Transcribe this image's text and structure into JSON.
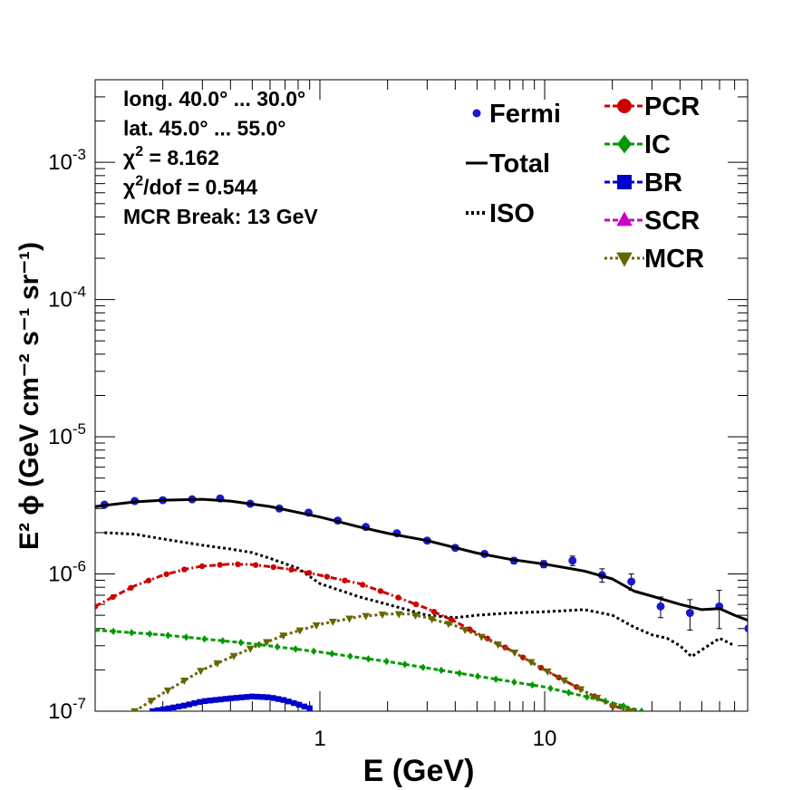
{
  "chart_data": {
    "type": "line",
    "xlabel": "E (GeV)",
    "ylabel": "E² ϕ (GeV cm⁻² s⁻¹ sr⁻¹)",
    "x_scale": "log",
    "y_scale": "log",
    "xlim": [
      0.1,
      80
    ],
    "ylim": [
      1e-07,
      0.004
    ],
    "x_tick_labels": [
      {
        "value": 1,
        "label": "1"
      },
      {
        "value": 10,
        "label": "10"
      }
    ],
    "y_tick_labels": [
      {
        "value": 1e-07,
        "base": "10",
        "exp": "-7"
      },
      {
        "value": 1e-06,
        "base": "10",
        "exp": "-6"
      },
      {
        "value": 1e-05,
        "base": "10",
        "exp": "-5"
      },
      {
        "value": 0.0001,
        "base": "10",
        "exp": "-4"
      },
      {
        "value": 0.001,
        "base": "10",
        "exp": "-3"
      }
    ],
    "annotations": [
      {
        "text": "long. 40.0° ... 30.0°"
      },
      {
        "text": "lat. 45.0° ... 55.0°"
      },
      {
        "symbol": "χ",
        "sup": "2",
        "rest": " = 8.162"
      },
      {
        "symbol": "χ",
        "sup": "2",
        "rest": "/dof = 0.544"
      },
      {
        "text": "MCR Break: 13 GeV"
      }
    ],
    "legend_left": [
      {
        "name": "Fermi",
        "marker": "dot",
        "color": "#1a1acc"
      },
      {
        "name": "Total",
        "marker": "solid-line",
        "color": "#000000"
      },
      {
        "name": "ISO",
        "marker": "dotted-line",
        "color": "#000000"
      }
    ],
    "legend_right": [
      {
        "name": "PCR",
        "marker": "circle",
        "color": "#cc0000"
      },
      {
        "name": "IC",
        "marker": "diamond",
        "color": "#009900"
      },
      {
        "name": "BR",
        "marker": "square",
        "color": "#0000cc"
      },
      {
        "name": "SCR",
        "marker": "triangle-up",
        "color": "#cc00cc"
      },
      {
        "name": "MCR",
        "marker": "triangle-down",
        "color": "#666600"
      }
    ],
    "series": [
      {
        "name": "Fermi",
        "style": "points-errorbars",
        "color": "#1a1acc",
        "x": [
          0.11,
          0.15,
          0.2,
          0.27,
          0.36,
          0.49,
          0.66,
          0.89,
          1.2,
          1.6,
          2.2,
          3.0,
          4.0,
          5.4,
          7.3,
          9.9,
          13.3,
          18.0,
          24.3,
          32.8,
          44.3,
          59.8,
          80.7
        ],
        "y": [
          3.2e-06,
          3.4e-06,
          3.45e-06,
          3.5e-06,
          3.55e-06,
          3.25e-06,
          3e-06,
          2.8e-06,
          2.45e-06,
          2.2e-06,
          1.98e-06,
          1.75e-06,
          1.55e-06,
          1.4e-06,
          1.25e-06,
          1.18e-06,
          1.25e-06,
          9.8e-07,
          8.8e-07,
          5.8e-07,
          5.2e-07,
          5.8e-07,
          4e-07
        ],
        "yerr": [
          1e-07,
          1e-07,
          1e-07,
          1e-07,
          1e-07,
          1e-07,
          1e-07,
          1e-07,
          8e-08,
          8e-08,
          7e-08,
          6e-08,
          6e-08,
          6e-08,
          6e-08,
          7e-08,
          1e-07,
          1.1e-07,
          1.2e-07,
          1e-07,
          1.3e-07,
          1.8e-07,
          1.6e-07
        ]
      },
      {
        "name": "Total",
        "style": "solid",
        "color": "#000000",
        "x": [
          0.1,
          0.15,
          0.2,
          0.3,
          0.4,
          0.6,
          1.0,
          1.5,
          2.0,
          3.0,
          5.0,
          7.0,
          10,
          15,
          20,
          25,
          30,
          40,
          50,
          60,
          70,
          80
        ],
        "y": [
          3.1e-06,
          3.35e-06,
          3.45e-06,
          3.5e-06,
          3.4e-06,
          3.1e-06,
          2.6e-06,
          2.2e-06,
          1.98e-06,
          1.75e-06,
          1.42e-06,
          1.28e-06,
          1.18e-06,
          1.05e-06,
          9.2e-07,
          7.5e-07,
          6.9e-07,
          6e-07,
          5.5e-07,
          5.6e-07,
          5e-07,
          4.6e-07
        ]
      },
      {
        "name": "ISO",
        "style": "dotted",
        "color": "#000000",
        "x": [
          0.11,
          0.15,
          0.2,
          0.3,
          0.4,
          0.5,
          0.6,
          0.8,
          1.0,
          1.5,
          2.0,
          3.0,
          4.0,
          5.0,
          7.0,
          10,
          15,
          20,
          25,
          30,
          35,
          40,
          45,
          50,
          60,
          70
        ],
        "y": [
          2e-06,
          1.95e-06,
          1.8e-06,
          1.62e-06,
          1.52e-06,
          1.43e-06,
          1.3e-06,
          1.1e-06,
          8.5e-07,
          6.8e-07,
          6e-07,
          5e-07,
          4.8e-07,
          5e-07,
          5.2e-07,
          5.3e-07,
          5.5e-07,
          5e-07,
          4.1e-07,
          3.6e-07,
          3.4e-07,
          3e-07,
          2.5e-07,
          2.8e-07,
          3.4e-07,
          3e-07
        ]
      },
      {
        "name": "PCR",
        "style": "dash-dot",
        "color": "#cc0000",
        "marker": "circle",
        "x": [
          0.1,
          0.12,
          0.15,
          0.2,
          0.25,
          0.3,
          0.4,
          0.5,
          0.6,
          0.8,
          1.0,
          1.5,
          2.0,
          3.0,
          4.0,
          5.0,
          7.0,
          10,
          15,
          20,
          24
        ],
        "y": [
          5.8e-07,
          6.8e-07,
          8.2e-07,
          9.8e-07,
          1.08e-06,
          1.14e-06,
          1.18e-06,
          1.17e-06,
          1.13e-06,
          1.06e-06,
          9.8e-07,
          8.5e-07,
          7.2e-07,
          5.6e-07,
          4.5e-07,
          3.7e-07,
          2.8e-07,
          2e-07,
          1.4e-07,
          1.1e-07,
          1e-07
        ]
      },
      {
        "name": "IC",
        "style": "dashed",
        "color": "#009900",
        "marker": "diamond",
        "x": [
          0.1,
          0.2,
          0.5,
          1.0,
          2.0,
          5.0,
          10,
          20,
          27
        ],
        "y": [
          3.9e-07,
          3.6e-07,
          3.1e-07,
          2.7e-07,
          2.3e-07,
          1.8e-07,
          1.5e-07,
          1.15e-07,
          1e-07
        ]
      },
      {
        "name": "BR",
        "style": "dash-dot",
        "color": "#0000cc",
        "marker": "square",
        "x": [
          0.18,
          0.25,
          0.3,
          0.4,
          0.5,
          0.6,
          0.7,
          0.8,
          0.9
        ],
        "y": [
          1e-07,
          1.1e-07,
          1.18e-07,
          1.24e-07,
          1.28e-07,
          1.26e-07,
          1.2e-07,
          1.12e-07,
          1.05e-07
        ]
      },
      {
        "name": "MCR",
        "style": "dotted",
        "color": "#666600",
        "marker": "triangle-down",
        "x": [
          0.15,
          0.2,
          0.3,
          0.5,
          0.7,
          1.0,
          1.5,
          2.0,
          2.5,
          3.0,
          4.0,
          5.0,
          7.0,
          10,
          15,
          20,
          24
        ],
        "y": [
          1e-07,
          1.35e-07,
          2e-07,
          2.9e-07,
          3.6e-07,
          4.3e-07,
          4.9e-07,
          5.1e-07,
          5.1e-07,
          4.8e-07,
          4.2e-07,
          3.6e-07,
          2.8e-07,
          2e-07,
          1.4e-07,
          1.1e-07,
          1e-07
        ]
      }
    ]
  }
}
